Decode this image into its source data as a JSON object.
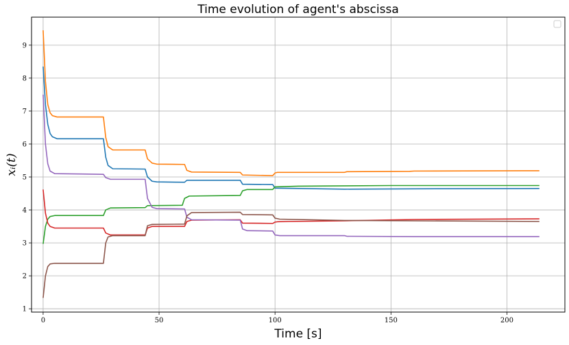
{
  "chart_data": {
    "type": "line",
    "title": "Time evolution of agent's abscissa",
    "xlabel": "Time [s]",
    "ylabel": "x_i(t)",
    "ylabel_display": "xᵢ(t)",
    "xlim": [
      -5,
      225
    ],
    "ylim": [
      0.9,
      9.85
    ],
    "xticks": [
      0,
      50,
      100,
      150,
      200
    ],
    "yticks": [
      1,
      2,
      3,
      4,
      5,
      6,
      7,
      8,
      9
    ],
    "grid": true,
    "legend": "top-right (empty)",
    "series": [
      {
        "color": "#1f77b4",
        "points": [
          [
            0,
            8.35
          ],
          [
            1,
            7.2
          ],
          [
            2,
            6.6
          ],
          [
            3,
            6.32
          ],
          [
            4,
            6.22
          ],
          [
            6,
            6.16
          ],
          [
            26,
            6.16
          ],
          [
            27,
            5.6
          ],
          [
            28,
            5.35
          ],
          [
            30,
            5.25
          ],
          [
            44,
            5.24
          ],
          [
            45,
            5.0
          ],
          [
            47,
            4.87
          ],
          [
            49,
            4.85
          ],
          [
            61,
            4.84
          ],
          [
            62,
            4.9
          ],
          [
            85,
            4.9
          ],
          [
            86,
            4.78
          ],
          [
            99,
            4.77
          ],
          [
            100,
            4.66
          ],
          [
            130,
            4.63
          ],
          [
            160,
            4.64
          ],
          [
            214,
            4.65
          ]
        ]
      },
      {
        "color": "#ff7f0e",
        "points": [
          [
            0,
            9.45
          ],
          [
            1,
            7.9
          ],
          [
            2,
            7.2
          ],
          [
            3,
            6.95
          ],
          [
            4,
            6.86
          ],
          [
            6,
            6.82
          ],
          [
            26,
            6.82
          ],
          [
            27,
            6.2
          ],
          [
            28,
            5.92
          ],
          [
            30,
            5.82
          ],
          [
            44,
            5.82
          ],
          [
            45,
            5.55
          ],
          [
            47,
            5.42
          ],
          [
            49,
            5.39
          ],
          [
            61,
            5.38
          ],
          [
            62,
            5.2
          ],
          [
            64,
            5.15
          ],
          [
            85,
            5.14
          ],
          [
            86,
            5.06
          ],
          [
            99,
            5.04
          ],
          [
            100,
            5.12
          ],
          [
            101,
            5.14
          ],
          [
            130,
            5.14
          ],
          [
            131,
            5.16
          ],
          [
            158,
            5.17
          ],
          [
            160,
            5.18
          ],
          [
            214,
            5.19
          ]
        ]
      },
      {
        "color": "#2ca02c",
        "points": [
          [
            0,
            2.97
          ],
          [
            1,
            3.5
          ],
          [
            2,
            3.72
          ],
          [
            3,
            3.8
          ],
          [
            5,
            3.83
          ],
          [
            26,
            3.83
          ],
          [
            27,
            4.0
          ],
          [
            29,
            4.06
          ],
          [
            44,
            4.07
          ],
          [
            45,
            4.13
          ],
          [
            60,
            4.14
          ],
          [
            61,
            4.35
          ],
          [
            63,
            4.42
          ],
          [
            85,
            4.44
          ],
          [
            86,
            4.58
          ],
          [
            88,
            4.62
          ],
          [
            99,
            4.62
          ],
          [
            100,
            4.7
          ],
          [
            110,
            4.72
          ],
          [
            150,
            4.74
          ],
          [
            214,
            4.74
          ]
        ]
      },
      {
        "color": "#d62728",
        "points": [
          [
            0,
            4.62
          ],
          [
            1,
            3.9
          ],
          [
            2,
            3.6
          ],
          [
            3,
            3.5
          ],
          [
            5,
            3.45
          ],
          [
            26,
            3.45
          ],
          [
            27,
            3.3
          ],
          [
            29,
            3.24
          ],
          [
            44,
            3.24
          ],
          [
            45,
            3.45
          ],
          [
            47,
            3.5
          ],
          [
            61,
            3.5
          ],
          [
            62,
            3.65
          ],
          [
            64,
            3.69
          ],
          [
            85,
            3.7
          ],
          [
            86,
            3.6
          ],
          [
            99,
            3.59
          ],
          [
            100,
            3.63
          ],
          [
            101,
            3.64
          ],
          [
            106,
            3.65
          ],
          [
            130,
            3.67
          ],
          [
            160,
            3.71
          ],
          [
            214,
            3.73
          ]
        ]
      },
      {
        "color": "#9467bd",
        "points": [
          [
            0,
            7.5
          ],
          [
            1,
            6.0
          ],
          [
            2,
            5.4
          ],
          [
            3,
            5.18
          ],
          [
            5,
            5.1
          ],
          [
            26,
            5.08
          ],
          [
            27,
            4.98
          ],
          [
            29,
            4.93
          ],
          [
            44,
            4.93
          ],
          [
            45,
            4.35
          ],
          [
            47,
            4.08
          ],
          [
            49,
            4.04
          ],
          [
            61,
            4.03
          ],
          [
            62,
            3.78
          ],
          [
            64,
            3.7
          ],
          [
            85,
            3.69
          ],
          [
            86,
            3.42
          ],
          [
            88,
            3.37
          ],
          [
            99,
            3.36
          ],
          [
            100,
            3.24
          ],
          [
            102,
            3.22
          ],
          [
            130,
            3.22
          ],
          [
            131,
            3.2
          ],
          [
            160,
            3.19
          ],
          [
            214,
            3.19
          ]
        ]
      },
      {
        "color": "#8c564b",
        "points": [
          [
            0,
            1.33
          ],
          [
            1,
            2.0
          ],
          [
            2,
            2.28
          ],
          [
            3,
            2.36
          ],
          [
            5,
            2.38
          ],
          [
            26,
            2.38
          ],
          [
            27,
            3.0
          ],
          [
            28,
            3.18
          ],
          [
            30,
            3.22
          ],
          [
            44,
            3.22
          ],
          [
            45,
            3.52
          ],
          [
            47,
            3.56
          ],
          [
            61,
            3.57
          ],
          [
            62,
            3.82
          ],
          [
            64,
            3.92
          ],
          [
            85,
            3.93
          ],
          [
            86,
            3.86
          ],
          [
            99,
            3.85
          ],
          [
            100,
            3.75
          ],
          [
            102,
            3.72
          ],
          [
            130,
            3.68
          ],
          [
            214,
            3.65
          ]
        ]
      }
    ]
  }
}
